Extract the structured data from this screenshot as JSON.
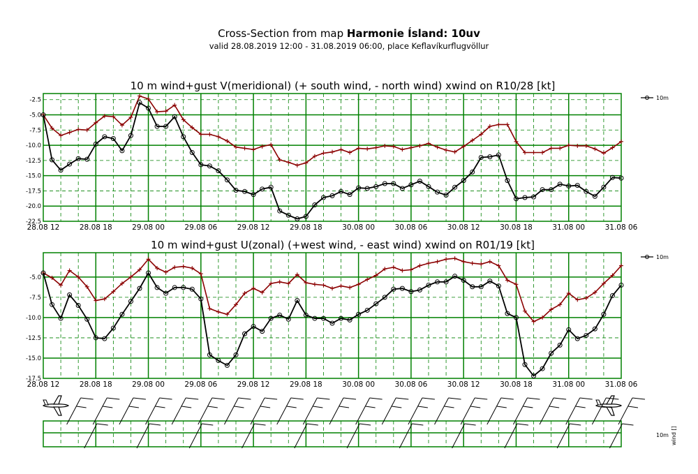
{
  "header": {
    "title_prefix": "Cross-Section from map",
    "title_bold": "Harmonie Ísland: 10uv",
    "subtitle": "valid 28.08.2019 12:00 - 31.08.2019 06:00, place Keflavíkurflugvöllur"
  },
  "colors": {
    "grid": "#008000",
    "mean_series": "#000000",
    "gust_series": "#8b0000",
    "barb": "#000000"
  },
  "x_tick_labels": [
    "28.08 12",
    "28.08 18",
    "29.08 00",
    "29.08 06",
    "29.08 12",
    "29.08 18",
    "30.08 00",
    "30.08 06",
    "30.08 12",
    "30.08 18",
    "31.08 00",
    "31.08 06"
  ],
  "chart_data": [
    {
      "type": "line",
      "title": "10 m wind+gust V(meridional) (+ south wind, - north wind) xwind on R10/28 [kt]",
      "x_hours": [
        0,
        1,
        2,
        3,
        4,
        5,
        6,
        7,
        8,
        9,
        10,
        11,
        12,
        13,
        14,
        15,
        16,
        17,
        18,
        19,
        20,
        21,
        22,
        23,
        24,
        25,
        26,
        27,
        28,
        29,
        30,
        31,
        32,
        33,
        34,
        35,
        36,
        37,
        38,
        39,
        40,
        41,
        42,
        43,
        44,
        45,
        46,
        47,
        48,
        49,
        50,
        51,
        52,
        53,
        54,
        55,
        56,
        57,
        58,
        59,
        60,
        61,
        62,
        63,
        64,
        65,
        66
      ],
      "ylim": [
        -22.5,
        -1.5
      ],
      "y_ticks": [
        -2.5,
        -5.0,
        -7.5,
        -10.0,
        -12.5,
        -15.0,
        -17.5,
        -20.0,
        -22.5
      ],
      "y_tick_labels": [
        "-2.5",
        "-5.0",
        "-7.5",
        "-10.0",
        "-12.5",
        "-15.0",
        "-17.5",
        "-20.0",
        "-22.5"
      ],
      "legend": "10m",
      "series": [
        {
          "role": "gust",
          "marker": "plus",
          "values": [
            -5.0,
            -7.2,
            -8.4,
            -7.9,
            -7.4,
            -7.5,
            -6.3,
            -5.2,
            -5.3,
            -6.7,
            -5.4,
            -1.9,
            -2.4,
            -4.5,
            -4.4,
            -3.4,
            -5.8,
            -7.1,
            -8.2,
            -8.2,
            -8.6,
            -9.3,
            -10.3,
            -10.5,
            -10.7,
            -10.2,
            -9.9,
            -12.4,
            -12.8,
            -13.3,
            -12.9,
            -11.8,
            -11.3,
            -11.1,
            -10.7,
            -11.2,
            -10.5,
            -10.6,
            -10.4,
            -10.1,
            -10.2,
            -10.7,
            -10.4,
            -10.1,
            -9.7,
            -10.3,
            -10.8,
            -11.1,
            -10.2,
            -9.2,
            -8.2,
            -6.9,
            -6.6,
            -6.6,
            -9.4,
            -11.2,
            -11.2,
            -11.2,
            -10.5,
            -10.5,
            -10.0,
            -10.1,
            -10.1,
            -10.6,
            -11.3,
            -10.4,
            -9.4
          ]
        },
        {
          "role": "mean",
          "marker": "circle",
          "values": [
            -5.0,
            -12.4,
            -14.1,
            -13.1,
            -12.2,
            -12.3,
            -9.8,
            -8.6,
            -8.9,
            -10.9,
            -8.4,
            -3.0,
            -3.9,
            -6.9,
            -6.9,
            -5.3,
            -8.6,
            -11.2,
            -13.2,
            -13.4,
            -14.2,
            -15.7,
            -17.4,
            -17.6,
            -18.1,
            -17.2,
            -16.9,
            -20.8,
            -21.5,
            -22.1,
            -21.7,
            -19.8,
            -18.6,
            -18.3,
            -17.6,
            -18.1,
            -17.0,
            -17.1,
            -16.8,
            -16.3,
            -16.3,
            -17.1,
            -16.5,
            -15.9,
            -16.8,
            -17.7,
            -18.2,
            -16.9,
            -15.8,
            -14.4,
            -12.0,
            -11.9,
            -11.6,
            -15.8,
            -18.8,
            -18.6,
            -18.5,
            -17.3,
            -17.3,
            -16.4,
            -16.7,
            -16.6,
            -17.6,
            -18.4,
            -16.9,
            -15.3,
            -15.4
          ]
        }
      ]
    },
    {
      "type": "line",
      "title": "10 m wind+gust U(zonal) (+west wind, - east wind) xwind on R01/19 [kt]",
      "x_hours": [
        0,
        1,
        2,
        3,
        4,
        5,
        6,
        7,
        8,
        9,
        10,
        11,
        12,
        13,
        14,
        15,
        16,
        17,
        18,
        19,
        20,
        21,
        22,
        23,
        24,
        25,
        26,
        27,
        28,
        29,
        30,
        31,
        32,
        33,
        34,
        35,
        36,
        37,
        38,
        39,
        40,
        41,
        42,
        43,
        44,
        45,
        46,
        47,
        48,
        49,
        50,
        51,
        52,
        53,
        54,
        55,
        56,
        57,
        58,
        59,
        60,
        61,
        62,
        63,
        64,
        65,
        66
      ],
      "ylim": [
        -17.5,
        -2.0
      ],
      "y_ticks": [
        -5.0,
        -7.5,
        -10.0,
        -12.5,
        -15.0,
        -17.5
      ],
      "y_tick_labels": [
        "-5.0",
        "-7.5",
        "-10.0",
        "-12.5",
        "-15.0",
        "-17.5"
      ],
      "legend": "10m",
      "series": [
        {
          "role": "gust",
          "marker": "plus",
          "values": [
            -4.5,
            -5.1,
            -6.0,
            -4.2,
            -5.0,
            -6.2,
            -7.9,
            -7.7,
            -6.8,
            -5.8,
            -5.0,
            -4.1,
            -2.8,
            -3.9,
            -4.4,
            -3.8,
            -3.7,
            -3.9,
            -4.6,
            -8.9,
            -9.3,
            -9.6,
            -8.4,
            -7.0,
            -6.4,
            -6.9,
            -5.8,
            -5.6,
            -5.8,
            -4.7,
            -5.7,
            -5.9,
            -6.0,
            -6.4,
            -6.1,
            -6.3,
            -5.9,
            -5.3,
            -4.8,
            -4.0,
            -3.8,
            -4.2,
            -4.1,
            -3.6,
            -3.3,
            -3.1,
            -2.8,
            -2.7,
            -3.1,
            -3.3,
            -3.4,
            -3.1,
            -3.6,
            -5.4,
            -5.9,
            -9.2,
            -10.5,
            -10.0,
            -9.0,
            -8.4,
            -7.0,
            -7.8,
            -7.6,
            -6.9,
            -5.8,
            -4.8,
            -3.6
          ]
        },
        {
          "role": "mean",
          "marker": "circle",
          "values": [
            -4.5,
            -8.4,
            -10.1,
            -7.2,
            -8.5,
            -10.2,
            -12.5,
            -12.6,
            -11.3,
            -9.6,
            -8.0,
            -6.4,
            -4.5,
            -6.3,
            -7.0,
            -6.3,
            -6.3,
            -6.5,
            -7.7,
            -14.6,
            -15.3,
            -15.9,
            -14.6,
            -12.0,
            -11.1,
            -11.7,
            -10.1,
            -9.7,
            -10.2,
            -7.9,
            -9.7,
            -10.1,
            -10.1,
            -10.7,
            -10.1,
            -10.3,
            -9.6,
            -9.1,
            -8.3,
            -7.5,
            -6.5,
            -6.4,
            -6.8,
            -6.6,
            -6.0,
            -5.6,
            -5.6,
            -4.9,
            -5.4,
            -6.2,
            -6.2,
            -5.5,
            -6.1,
            -9.5,
            -10.0,
            -15.8,
            -17.2,
            -16.3,
            -14.4,
            -13.4,
            -11.5,
            -12.6,
            -12.2,
            -11.4,
            -9.6,
            -7.3,
            -6.0
          ]
        }
      ]
    },
    {
      "type": "barbs",
      "label_level": "10m",
      "label_quantity": "wind []"
    }
  ]
}
